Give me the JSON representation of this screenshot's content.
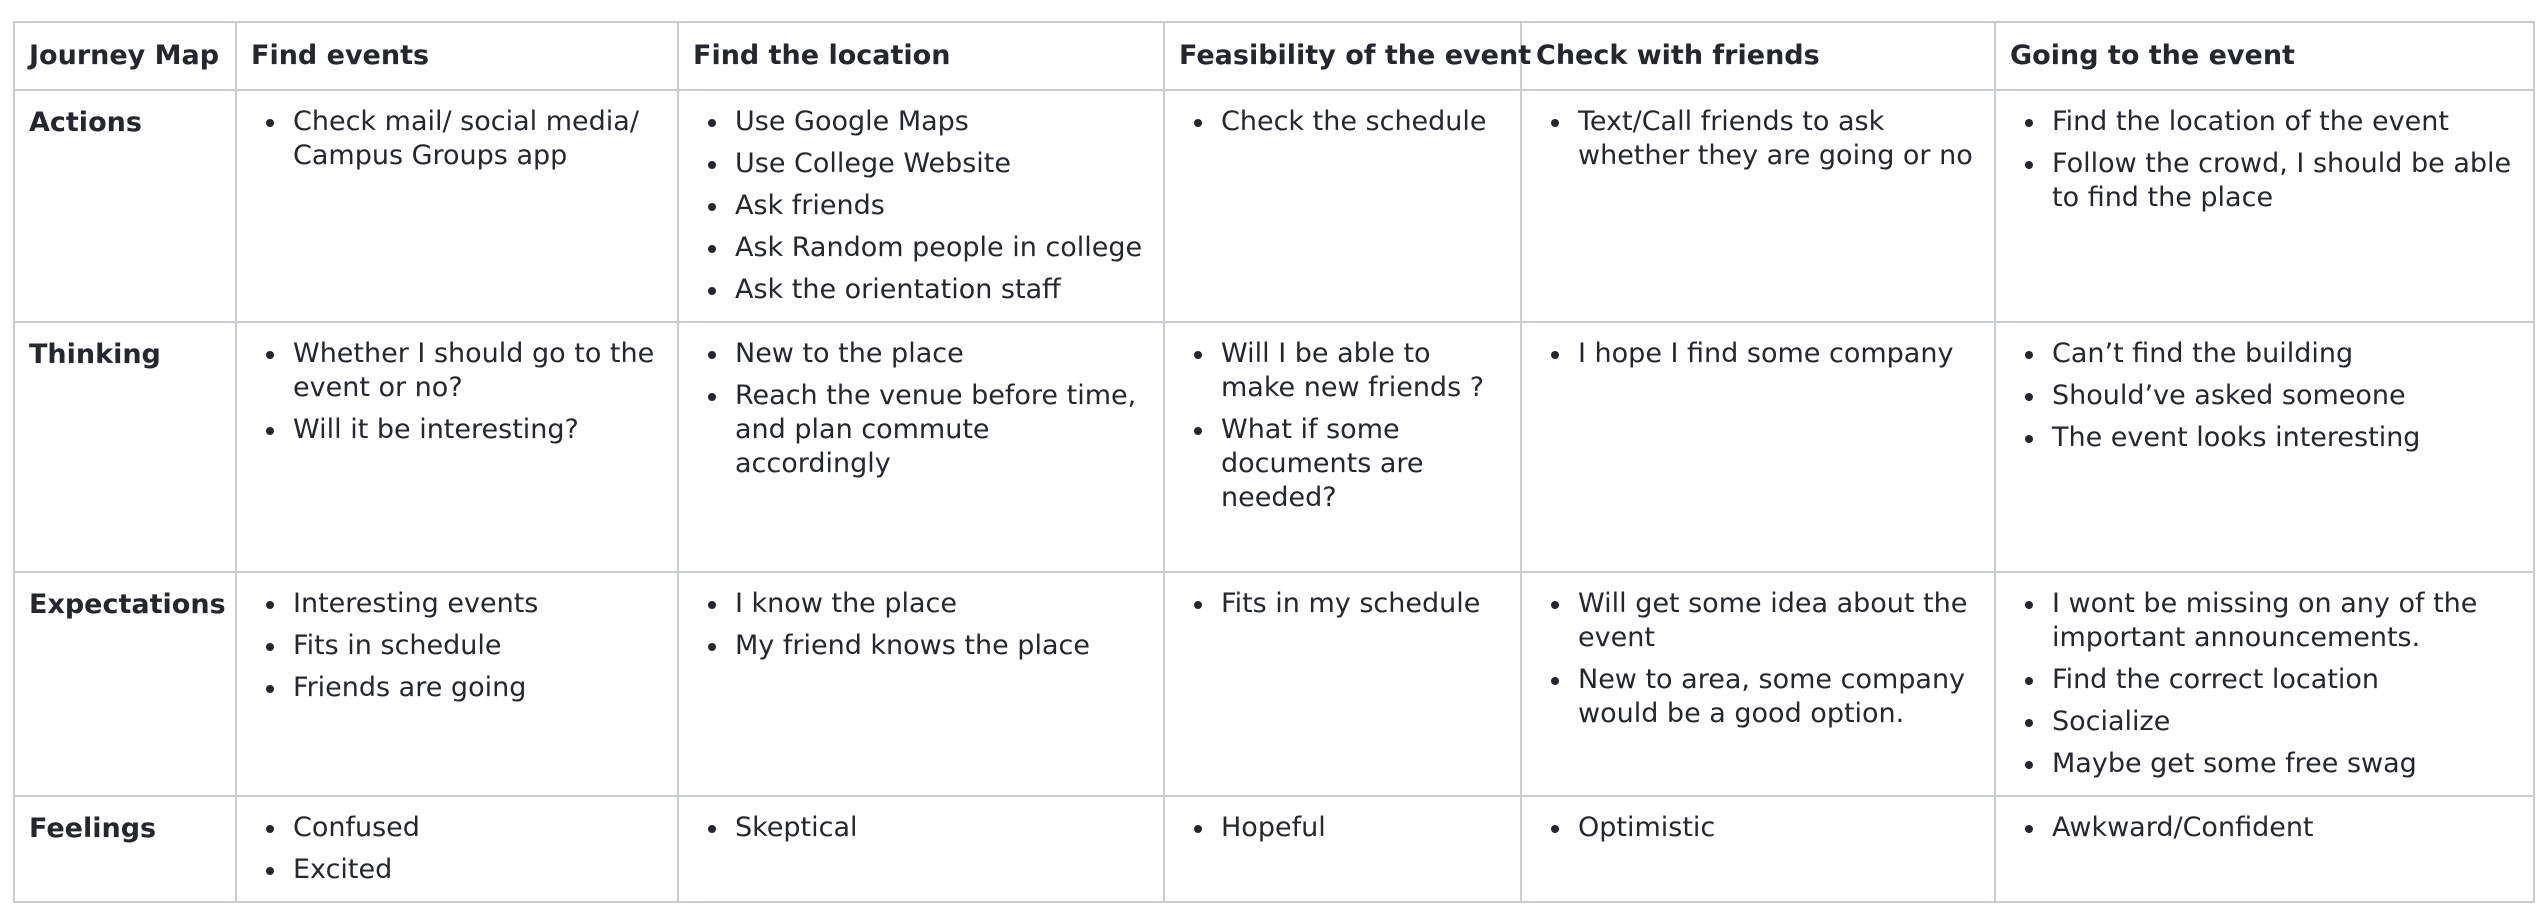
{
  "journey_map": {
    "corner_label": "Journey Map",
    "stages": [
      "Find events",
      "Find the location",
      "Feasibility of the event",
      "Check with friends",
      "Going to the event"
    ],
    "rows": [
      {
        "label": "Actions",
        "cells": [
          [
            "Check mail/ social media/ Campus Groups app"
          ],
          [
            "Use Google Maps",
            "Use College Website",
            "Ask friends",
            "Ask Random people in college",
            "Ask the orientation staff"
          ],
          [
            "Check the schedule"
          ],
          [
            "Text/Call friends to ask whether they are going or no"
          ],
          [
            "Find the location of the event",
            "Follow the crowd, I should be able to find the place"
          ]
        ]
      },
      {
        "label": "Thinking",
        "cells": [
          [
            "Whether I should go to the event or no?",
            "Will it be interesting?"
          ],
          [
            "New to the place",
            "Reach the venue before time, and plan commute accordingly"
          ],
          [
            "Will I be able to make new friends ?",
            "What if some documents are needed?"
          ],
          [
            "I hope I find some company"
          ],
          [
            "Can’t find the building",
            "Should’ve asked someone",
            "The event looks interesting"
          ]
        ]
      },
      {
        "label": "Expectations",
        "cells": [
          [
            "Interesting events",
            "Fits in schedule",
            "Friends are going"
          ],
          [
            "I know the place",
            "My friend knows the place"
          ],
          [
            "Fits in my schedule"
          ],
          [
            "Will get some idea about the event",
            "New to area, some company would be a good option."
          ],
          [
            "I wont be missing on any of the important announcements.",
            "Find the correct location",
            "Socialize",
            "Maybe get some free swag"
          ]
        ]
      },
      {
        "label": "Feelings",
        "cells": [
          [
            "Confused",
            "Excited"
          ],
          [
            "Skeptical"
          ],
          [
            "Hopeful"
          ],
          [
            "Optimistic"
          ],
          [
            "Awkward/Confident"
          ]
        ]
      }
    ]
  }
}
